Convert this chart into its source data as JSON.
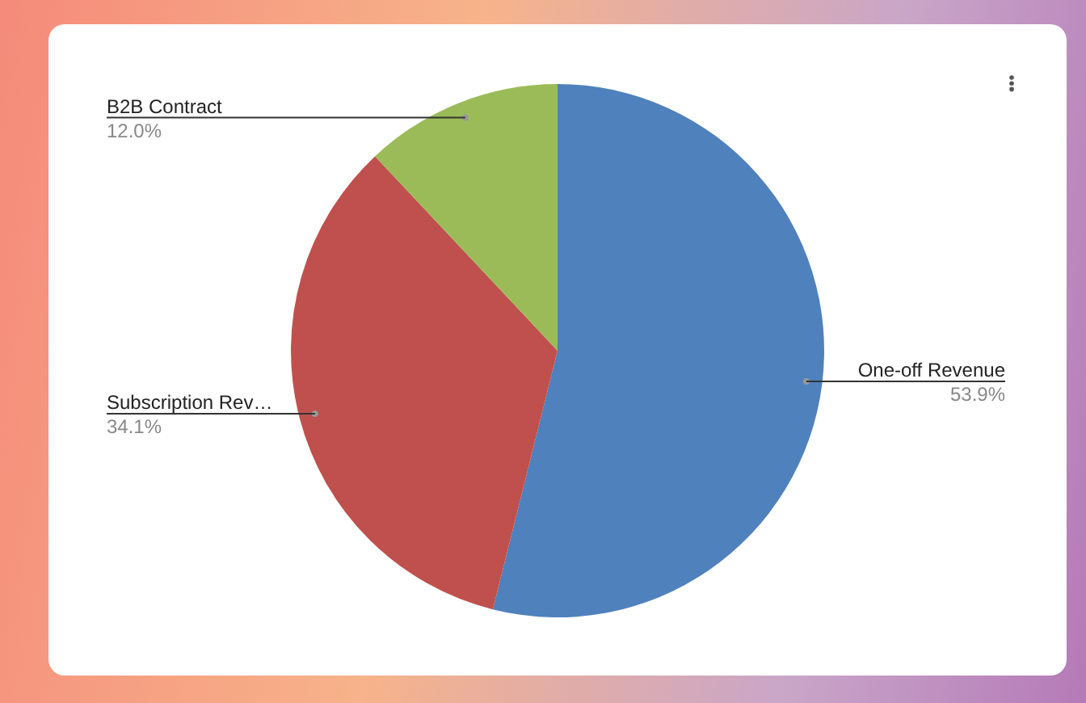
{
  "chart_data": {
    "type": "pie",
    "categories": [
      "One-off Revenue",
      "Subscription Rev…",
      "B2B Contract"
    ],
    "values": [
      53.9,
      34.1,
      12.0
    ],
    "value_labels": [
      "53.9%",
      "34.1%",
      "12.0%"
    ],
    "colors": [
      "#4f81bd",
      "#c0504d",
      "#9bbb59"
    ]
  }
}
